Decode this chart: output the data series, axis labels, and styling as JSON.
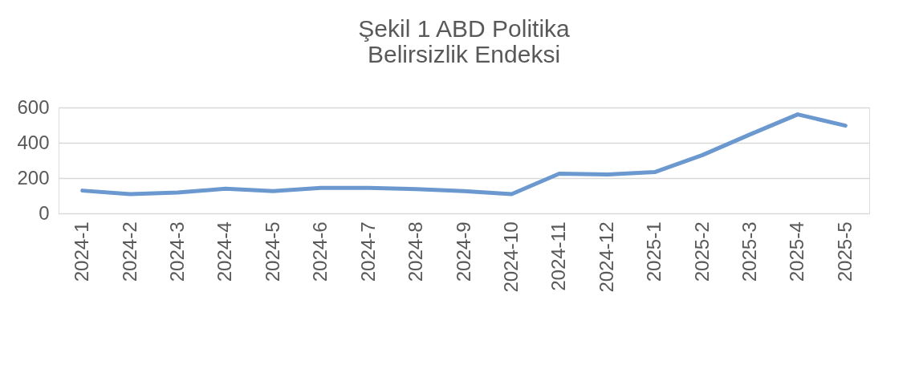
{
  "chart_data": {
    "type": "line",
    "title": [
      "Şekil 1  ABD Politika",
      "Belirsizlik Endeksi"
    ],
    "categories": [
      "2024-1",
      "2024-2",
      "2024-3",
      "2024-4",
      "2024-5",
      "2024-6",
      "2024-7",
      "2024-8",
      "2024-9",
      "2024-10",
      "2024-11",
      "2024-12",
      "2025-1",
      "2025-2",
      "2025-3",
      "2025-4",
      "2025-5"
    ],
    "series": [
      {
        "color": "#6a98cf",
        "values": [
          129,
          109,
          118,
          140,
          126,
          144,
          144,
          138,
          126,
          109,
          225,
          220,
          234,
          330,
          447,
          561,
          497
        ]
      }
    ],
    "ylim": [
      0,
      600
    ],
    "yticks": [
      0,
      200,
      400,
      600
    ],
    "grid": "y",
    "legend": false,
    "marker": "none",
    "line_style": "solid"
  }
}
